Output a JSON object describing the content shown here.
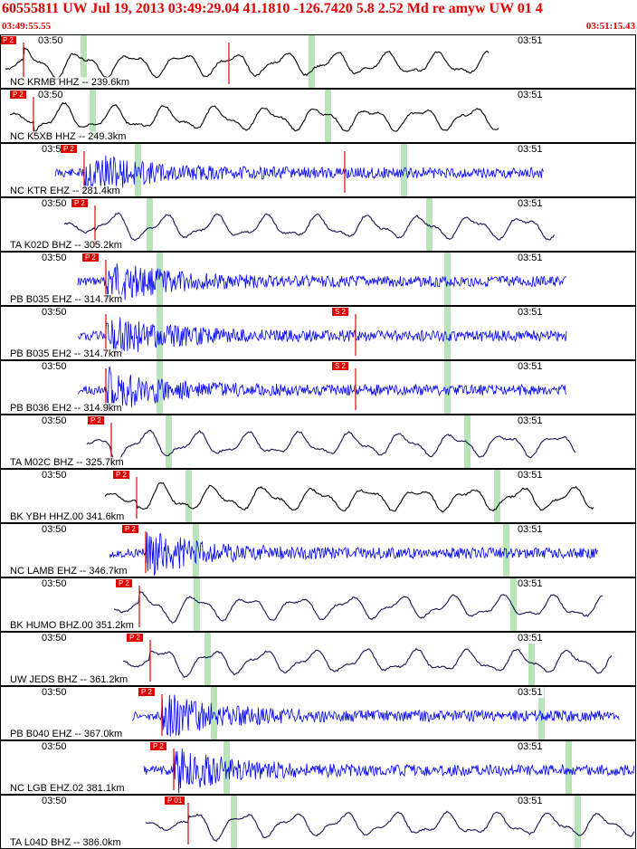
{
  "header": {
    "title": "60555811 UW Jul 19, 2013 03:49:29.04   41.1810 -126.7420  5.8 2.52 Md re amyw UW 01   4",
    "start_time": "03:49:55.55",
    "end_time": "03:51:15.43"
  },
  "colors": {
    "header_red": "#e60000",
    "pick_red": "#e00000",
    "trace_black": "#000000",
    "trace_blue": "#0000ff",
    "trace_navy": "#1a1055",
    "window_green": "#b9e3b9"
  },
  "traces": [
    {
      "station": "NC KRMB HHZ -- 239.6km",
      "t1": "03:50",
      "t2": "03:51",
      "t1x": 40,
      "t2x": 570,
      "pick": "P 2",
      "pickx": 25,
      "pick2": "",
      "pick2x": 252,
      "color": "black",
      "type": "lp",
      "start": 5,
      "end": 540,
      "onset": 25,
      "green": [
        88,
        340
      ],
      "seed": 3
    },
    {
      "station": "NC K5XB HHZ -- 249.3km",
      "t1": "03:50",
      "t2": "03:51",
      "t1x": 40,
      "t2x": 570,
      "pick": "P 2",
      "pickx": 36,
      "pick2": "",
      "pick2x": 0,
      "color": "black",
      "type": "lp",
      "start": 10,
      "end": 550,
      "onset": 36,
      "green": [
        98,
        358
      ],
      "seed": 7
    },
    {
      "station": "NC KTR EHZ -- 281.4km",
      "t1": "03:50",
      "t2": "03:51",
      "t1x": 44,
      "t2x": 570,
      "pick": "P 2",
      "pickx": 92,
      "pick2": "",
      "pick2x": 380,
      "color": "blue",
      "type": "hf",
      "start": 60,
      "end": 600,
      "onset": 92,
      "green": [
        148,
        442
      ],
      "seed": 11
    },
    {
      "station": "TA K02D BHZ -- 305.2km",
      "t1": "03:50",
      "t2": "03:51",
      "t1x": 44,
      "t2x": 570,
      "pick": "P 2",
      "pickx": 104,
      "pick2": "",
      "pick2x": 0,
      "color": "navy",
      "type": "lp",
      "start": 70,
      "end": 612,
      "onset": 104,
      "green": [
        161,
        470
      ],
      "seed": 13
    },
    {
      "station": "PB B035 EHZ -- 314.7km",
      "t1": "03:50",
      "t2": "03:51",
      "t1x": 44,
      "t2x": 570,
      "pick": "P 2",
      "pickx": 116,
      "pick2": "",
      "pick2x": 0,
      "color": "blue",
      "type": "hf",
      "start": 85,
      "end": 625,
      "onset": 116,
      "green": [
        172,
        490
      ],
      "seed": 17
    },
    {
      "station": "PB B035 EH2 -- 314.7km",
      "t1": "03:50",
      "t2": "03:51",
      "t1x": 44,
      "t2x": 570,
      "pick": "",
      "pickx": 116,
      "pick2": "S 2",
      "pick2x": 392,
      "color": "blue",
      "type": "hf",
      "start": 85,
      "end": 625,
      "onset": 116,
      "green": [
        172,
        490
      ],
      "seed": 19
    },
    {
      "station": "PB B036 EH2 -- 314.9km",
      "t1": "03:50",
      "t2": "03:51",
      "t1x": 44,
      "t2x": 570,
      "pick": "",
      "pickx": 116,
      "pick2": "S 2",
      "pick2x": 392,
      "color": "blue",
      "type": "hf",
      "start": 85,
      "end": 625,
      "onset": 116,
      "green": [
        172,
        490
      ],
      "seed": 23
    },
    {
      "station": "TA M02C BHZ -- 325.7km",
      "t1": "03:50",
      "t2": "03:51",
      "t1x": 44,
      "t2x": 570,
      "pick": "P 2",
      "pickx": 122,
      "pick2": "",
      "pick2x": 0,
      "color": "navy",
      "type": "lp",
      "start": 95,
      "end": 636,
      "onset": 122,
      "green": [
        182,
        512
      ],
      "seed": 29
    },
    {
      "station": "BK YBH HHZ.00 341.6km",
      "t1": "03:50",
      "t2": "03:51",
      "t1x": 44,
      "t2x": 570,
      "pick": "P 2",
      "pickx": 150,
      "pick2": "",
      "pick2x": 0,
      "color": "black",
      "type": "lp",
      "start": 115,
      "end": 655,
      "onset": 150,
      "green": [
        204,
        545
      ],
      "seed": 31
    },
    {
      "station": "NC LAMB EHZ -- 346.7km",
      "t1": "03:50",
      "t2": "03:51",
      "t1x": 44,
      "t2x": 570,
      "pick": "P 2",
      "pickx": 160,
      "pick2": "",
      "pick2x": 0,
      "color": "blue",
      "type": "hf",
      "start": 120,
      "end": 660,
      "onset": 160,
      "green": [
        212,
        555
      ],
      "seed": 37
    },
    {
      "station": "BK HUMO BHZ.00 351.2km",
      "t1": "03:50",
      "t2": "03:51",
      "t1x": 44,
      "t2x": 570,
      "pick": "P 2",
      "pickx": 153,
      "pick2": "",
      "pick2x": 0,
      "color": "navy",
      "type": "lp",
      "start": 125,
      "end": 665,
      "onset": 153,
      "green": [
        213,
        563
      ],
      "seed": 41
    },
    {
      "station": "UW JEDS BHZ -- 361.2km",
      "t1": "03:50",
      "t2": "03:51",
      "t1x": 44,
      "t2x": 570,
      "pick": "P 2",
      "pickx": 165,
      "pick2": "",
      "pick2x": 0,
      "color": "navy",
      "type": "lp",
      "start": 135,
      "end": 676,
      "onset": 165,
      "green": [
        225,
        583
      ],
      "seed": 43
    },
    {
      "station": "PB B040 EHZ -- 367.0km",
      "t1": "03:50",
      "t2": "03:51",
      "t1x": 44,
      "t2x": 570,
      "pick": "P 2",
      "pickx": 178,
      "pick2": "",
      "pick2x": 0,
      "color": "blue",
      "type": "hf",
      "start": 145,
      "end": 684,
      "onset": 178,
      "green": [
        232,
        594
      ],
      "seed": 47
    },
    {
      "station": "NC LGB EHZ.02 381.1km",
      "t1": "03:50",
      "t2": "03:51",
      "t1x": 44,
      "t2x": 570,
      "pick": "P 2",
      "pickx": 191,
      "pick2": "",
      "pick2x": 0,
      "color": "blue",
      "type": "hf",
      "start": 158,
      "end": 700,
      "onset": 191,
      "green": [
        246,
        624
      ],
      "seed": 53
    },
    {
      "station": "TA L04D BHZ -- 386.0km",
      "t1": "03:50",
      "t2": "03:51",
      "t1x": 44,
      "t2x": 570,
      "pick": "P 01",
      "pickx": 207,
      "pick2": "",
      "pick2x": 0,
      "color": "navy",
      "type": "lp",
      "start": 160,
      "end": 700,
      "onset": 207,
      "green": [
        254,
        634
      ],
      "seed": 59
    }
  ]
}
